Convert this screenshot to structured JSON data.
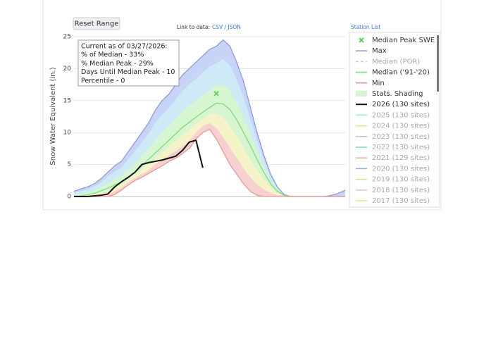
{
  "chart_data": {
    "type": "line",
    "y_axis_label": "Snow Water Equivalent (in.)",
    "reset_button": "Reset Range",
    "link_label": "Link to data:",
    "link_formats": "CSV / JSON",
    "station_list": "Station List",
    "tooltip": [
      "Current as of 03/27/2026:",
      "% of Median - 33%",
      "% Median Peak - 29%",
      "Days Until Median Peak - 10",
      "Percentile - 0"
    ],
    "ylim": [
      0,
      25
    ],
    "yticks": [
      0,
      5,
      10,
      15,
      20,
      25
    ],
    "grid": true,
    "categories": [
      null,
      null,
      null,
      null,
      null,
      null,
      null,
      null,
      null,
      null,
      null,
      null,
      null,
      null,
      null,
      null,
      null,
      null,
      null,
      null,
      null,
      null,
      null,
      null,
      null,
      null,
      null,
      null,
      null,
      null,
      null,
      null,
      null,
      null,
      null,
      null,
      null,
      null,
      null,
      null,
      null
    ],
    "series": [
      {
        "name": "Median Peak SWE",
        "color": "#5fd35f",
        "marker": "x",
        "values": [
          null,
          null,
          null,
          null,
          null,
          null,
          null,
          null,
          null,
          null,
          null,
          null,
          null,
          null,
          null,
          null,
          null,
          null,
          null,
          null,
          null,
          16.1,
          null,
          null,
          null,
          null,
          null,
          null,
          null,
          null,
          null,
          null,
          null,
          null,
          null,
          null,
          null,
          null,
          null,
          null,
          null
        ]
      },
      {
        "name": "Max",
        "color": "#8e9cd6",
        "fill": "#c8d4f7",
        "values": [
          0.8,
          1.2,
          1.5,
          2,
          2.8,
          3.8,
          4.8,
          5.5,
          7,
          8.5,
          10,
          11.5,
          13.5,
          15,
          16,
          17.5,
          19,
          20,
          21,
          22,
          23,
          23.5,
          24.5,
          23.5,
          21,
          18,
          14,
          10,
          6.5,
          3.5,
          1.5,
          0.3,
          0,
          0,
          0,
          0,
          0,
          0,
          0.2,
          0.5,
          1
        ]
      },
      {
        "name": "Median (POR)",
        "color": "#cccccc",
        "visible": false,
        "dashed": true
      },
      {
        "name": "Median ('91-'20)",
        "color": "#7fd97f",
        "values": [
          0,
          0.1,
          0.3,
          0.5,
          0.9,
          1.3,
          1.8,
          2.3,
          3,
          3.8,
          4.8,
          5.8,
          6.8,
          7.8,
          8.8,
          9.8,
          10.8,
          11.6,
          12.4,
          13.2,
          13.9,
          14.6,
          14.5,
          13.6,
          12,
          10,
          8,
          5.8,
          3.8,
          2,
          0.8,
          0.2,
          0,
          0,
          0,
          0,
          0,
          0,
          0,
          0,
          0
        ]
      },
      {
        "name": "Min",
        "color": "#e89898",
        "fill": "#ffffff",
        "values": [
          0,
          0,
          0,
          0,
          0,
          0,
          0.3,
          1,
          1.8,
          2.5,
          3,
          3.6,
          4.2,
          4.8,
          5.5,
          6,
          6.7,
          7.5,
          9,
          10,
          10.5,
          9,
          7,
          5,
          3.5,
          2,
          0.8,
          0.2,
          0,
          0,
          0,
          0,
          0,
          0,
          0,
          0,
          0,
          0,
          0,
          0,
          0
        ]
      },
      {
        "name": "Stats. Shading",
        "color": "#d6f4d0",
        "bands": [
          {
            "color": "#cdeaf6",
            "values": [
              0.6,
              0.9,
              1.1,
              1.6,
              2.2,
              3.1,
              3.9,
              4.5,
              5.8,
              7.1,
              8.4,
              9.8,
              11.5,
              12.8,
              13.8,
              15.2,
              16.5,
              17.5,
              18.4,
              19.4,
              20.3,
              20.8,
              21.5,
              20.5,
              18.3,
              15.6,
              12.2,
              8.7,
              5.7,
              3.1,
              1.3,
              0.3,
              0,
              0,
              0,
              0,
              0,
              0,
              0,
              0,
              0
            ]
          },
          {
            "color": "#d8f5d1",
            "values": [
              0.2,
              0.4,
              0.7,
              0.9,
              1.5,
              2.1,
              2.7,
              3.3,
              4.2,
              5.2,
              6.4,
              7.5,
              8.8,
              10,
              11,
              12.1,
              13.3,
              14.1,
              15,
              15.8,
              16.6,
              17.3,
              17.5,
              16.6,
              14.7,
              12.4,
              9.8,
              7.1,
              4.6,
              2.5,
              1,
              0.2,
              0,
              0,
              0,
              0,
              0,
              0,
              0,
              0,
              0
            ]
          },
          {
            "color": "#f5f3c8",
            "values": [
              0,
              0.1,
              0.2,
              0.4,
              0.6,
              0.9,
              1.4,
              1.9,
              2.6,
              3.4,
              4.3,
              5.1,
              6,
              6.9,
              7.8,
              8.7,
              9.6,
              10.4,
              11.4,
              12.2,
              12.9,
              12.9,
              12.3,
              11,
              9.5,
              7.6,
              5.8,
              4.1,
              2.7,
              1.4,
              0.6,
              0.1,
              0,
              0,
              0,
              0,
              0,
              0,
              0,
              0,
              0
            ]
          },
          {
            "color": "#f7d0d0",
            "values": [
              0,
              0,
              0.1,
              0.2,
              0.3,
              0.4,
              0.8,
              1.4,
              2.2,
              2.9,
              3.5,
              4.1,
              5,
              5.7,
              6.5,
              7.1,
              7.9,
              8.7,
              10,
              11,
              11.5,
              10.7,
              9.3,
              7.6,
              6.1,
              4.4,
              3,
              1.9,
              1.1,
              0.6,
              0.2,
              0.1,
              0,
              0,
              0,
              0,
              0,
              0,
              0,
              0,
              0
            ]
          }
        ]
      },
      {
        "name": "2026 (130 sites)",
        "color": "#111111",
        "width": 2,
        "values": [
          0,
          0,
          0,
          0.1,
          0.2,
          0.4,
          1.5,
          2.3,
          3,
          3.8,
          5,
          5.3,
          5.5,
          5.7,
          6,
          6.3,
          7.2,
          8.5,
          8.8,
          4.5,
          null,
          null,
          null,
          null,
          null,
          null,
          null,
          null,
          null,
          null,
          null,
          null,
          null,
          null,
          null,
          null,
          null,
          null,
          null,
          null,
          null
        ]
      },
      {
        "name": "2025 (130 sites)",
        "color": "#a6e2f0",
        "visible": false
      },
      {
        "name": "2024 (130 sites)",
        "color": "#e4e2a8",
        "visible": false
      },
      {
        "name": "2023 (130 sites)",
        "color": "#d7b8e0",
        "visible": false
      },
      {
        "name": "2022 (130 sites)",
        "color": "#83d8bb",
        "visible": false
      },
      {
        "name": "2021 (129 sites)",
        "color": "#f0aaaa",
        "visible": false
      },
      {
        "name": "2020 (130 sites)",
        "color": "#aaa6da",
        "visible": false
      },
      {
        "name": "2019 (130 sites)",
        "color": "#e6d8a2",
        "visible": false
      },
      {
        "name": "2018 (130 sites)",
        "color": "#f0c0dc",
        "visible": false
      },
      {
        "name": "2017 (130 sites)",
        "color": "#f4d8a8",
        "visible": false
      }
    ]
  }
}
